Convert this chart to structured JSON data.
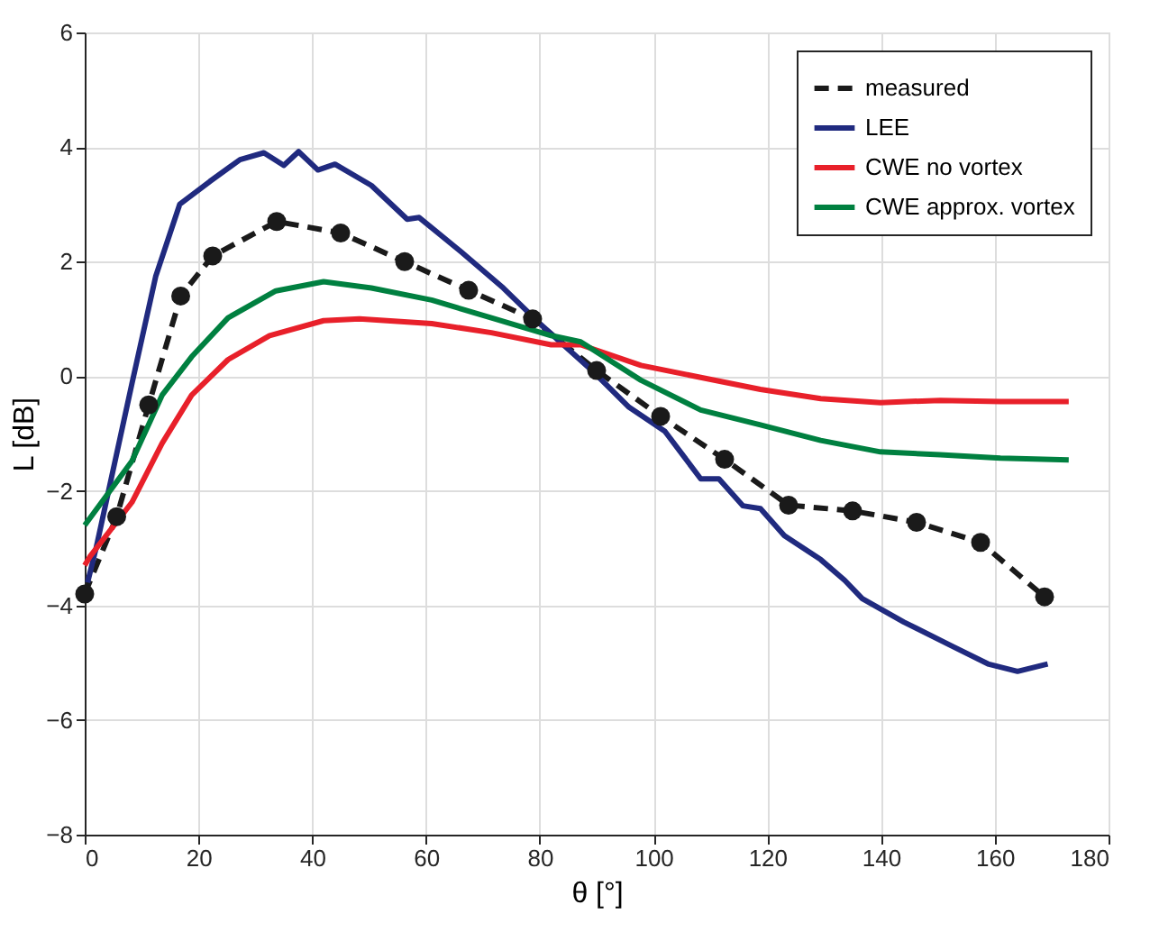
{
  "chart_data": {
    "type": "line",
    "xlabel": "θ [°]",
    "ylabel": "L [dB]",
    "xlim": [
      0,
      180
    ],
    "ylim": [
      -8,
      6
    ],
    "xticks": [
      0,
      20,
      40,
      60,
      80,
      100,
      120,
      140,
      160,
      180
    ],
    "yticks": [
      -8,
      -6,
      -4,
      -2,
      0,
      2,
      4,
      6
    ],
    "grid": true,
    "legend": "top right",
    "series": [
      {
        "name": "measured",
        "color": "#1a1a1a",
        "line_style": "dashed",
        "marker": "circle",
        "x": [
          0,
          5.625,
          11.25,
          16.875,
          22.5,
          33.75,
          45,
          56.25,
          67.5,
          78.75,
          90,
          101.25,
          112.5,
          123.75,
          135,
          146.25,
          157.5,
          168.75
        ],
        "values": [
          -3.8,
          -2.45,
          -0.5,
          1.4,
          2.1,
          2.7,
          2.5,
          2.0,
          1.5,
          1.0,
          0.1,
          -0.7,
          -1.45,
          -2.25,
          -2.35,
          -2.55,
          -2.9,
          -3.85
        ]
      },
      {
        "name": "LEE",
        "color": "#202a7f",
        "line_style": "solid",
        "marker": "none",
        "x": [
          0.5,
          2,
          8.3,
          12.5,
          16.7,
          22,
          27.3,
          31.5,
          35,
          37.6,
          41,
          44,
          50.4,
          56.7,
          58.8,
          66.2,
          73.6,
          80,
          89.4,
          95.7,
          102,
          108.3,
          111.5,
          115.7,
          118.8,
          123,
          129.4,
          133.6,
          136.7,
          144,
          152.5,
          158.8,
          164,
          169.3
        ],
        "values": [
          -3.6,
          -3.0,
          -0.13,
          1.75,
          3.0,
          3.4,
          3.78,
          3.9,
          3.68,
          3.92,
          3.6,
          3.7,
          3.33,
          2.74,
          2.77,
          2.17,
          1.54,
          0.92,
          0.08,
          -0.54,
          -0.96,
          -1.79,
          -1.79,
          -2.26,
          -2.31,
          -2.78,
          -3.2,
          -3.56,
          -3.88,
          -4.29,
          -4.71,
          -5.02,
          -5.15,
          -5.02
        ]
      },
      {
        "name": "CWE no vortex",
        "color": "#e8202a",
        "line_style": "solid",
        "marker": "none",
        "x": [
          0,
          0.9,
          8.3,
          13.6,
          18.8,
          25.2,
          32.5,
          42,
          48.3,
          61,
          71.5,
          82,
          87.2,
          97.8,
          108.3,
          118.8,
          129.4,
          139.9,
          150.4,
          161,
          173
        ],
        "values": [
          -3.3,
          -3.15,
          -2.2,
          -1.17,
          -0.33,
          0.29,
          0.71,
          0.97,
          1.0,
          0.92,
          0.76,
          0.55,
          0.55,
          0.19,
          -0.02,
          -0.23,
          -0.39,
          -0.46,
          -0.42,
          -0.44,
          -0.44
        ]
      },
      {
        "name": "CWE approx. vortex",
        "color": "#008040",
        "line_style": "solid",
        "marker": "none",
        "x": [
          0,
          8.3,
          13.6,
          18.8,
          25.2,
          33.6,
          42,
          50.4,
          61,
          71.5,
          82,
          87.2,
          97.8,
          108.3,
          118.8,
          129.4,
          139.9,
          150.4,
          161,
          173
        ],
        "values": [
          -2.6,
          -1.48,
          -0.33,
          0.34,
          1.02,
          1.49,
          1.65,
          1.54,
          1.33,
          1.02,
          0.71,
          0.6,
          -0.07,
          -0.59,
          -0.85,
          -1.12,
          -1.32,
          -1.37,
          -1.43,
          -1.46
        ]
      }
    ]
  }
}
